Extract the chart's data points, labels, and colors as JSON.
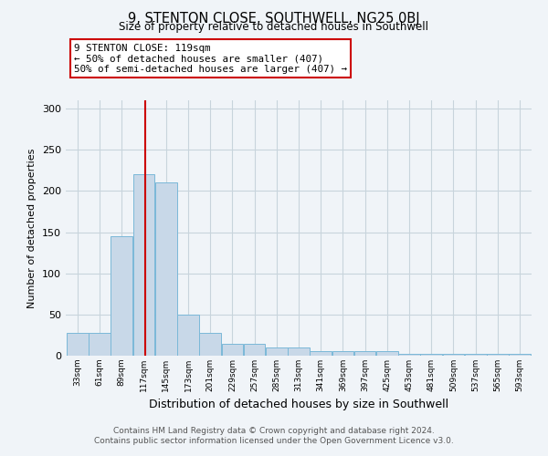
{
  "title": "9, STENTON CLOSE, SOUTHWELL, NG25 0BJ",
  "subtitle": "Size of property relative to detached houses in Southwell",
  "xlabel": "Distribution of detached houses by size in Southwell",
  "ylabel": "Number of detached properties",
  "bar_color": "#c8d8e8",
  "bar_edgecolor": "#7ab8d8",
  "grid_color": "#c8d4dc",
  "background_color": "#f0f4f8",
  "annotation_box_color": "#ffffff",
  "annotation_border_color": "#cc0000",
  "vline_color": "#cc0000",
  "vline_x": 119,
  "annotation_text": "9 STENTON CLOSE: 119sqm\n← 50% of detached houses are smaller (407)\n50% of semi-detached houses are larger (407) →",
  "footer_text": "Contains HM Land Registry data © Crown copyright and database right 2024.\nContains public sector information licensed under the Open Government Licence v3.0.",
  "bins": [
    33,
    61,
    89,
    117,
    145,
    173,
    201,
    229,
    257,
    285,
    313,
    341,
    369,
    397,
    425,
    453,
    481,
    509,
    537,
    565,
    593
  ],
  "counts": [
    28,
    28,
    145,
    220,
    210,
    50,
    28,
    14,
    14,
    10,
    10,
    5,
    5,
    5,
    5,
    2,
    2,
    2,
    2,
    2,
    2
  ],
  "ylim": [
    0,
    310
  ],
  "yticks": [
    0,
    50,
    100,
    150,
    200,
    250,
    300
  ],
  "figsize": [
    6.0,
    5.0
  ],
  "dpi": 100
}
